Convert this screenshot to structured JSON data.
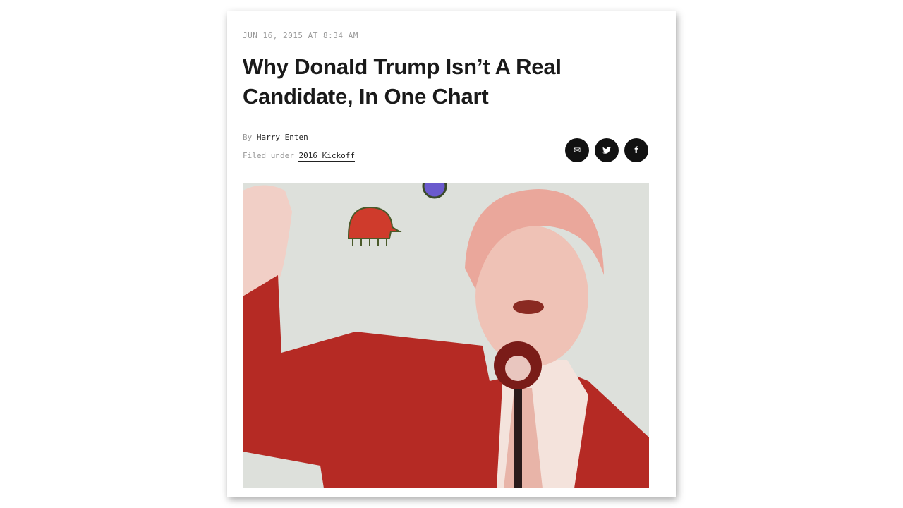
{
  "article": {
    "date": "JUN 16, 2015 AT 8:34 AM",
    "title": "Why Donald Trump Isn’t A Real Candidate, In One Chart",
    "byline_prefix": "By",
    "author": "Harry Enten",
    "filed_prefix": "Filed under",
    "category": "2016 Kickoff"
  },
  "share": [
    {
      "icon": "email-icon",
      "glyph": "✉"
    },
    {
      "icon": "twitter-icon",
      "glyph": "🐦"
    },
    {
      "icon": "facebook-icon",
      "glyph": "f"
    }
  ],
  "colors": {
    "accent_red": "#b52a24",
    "hero_bg": "#dde0db"
  }
}
